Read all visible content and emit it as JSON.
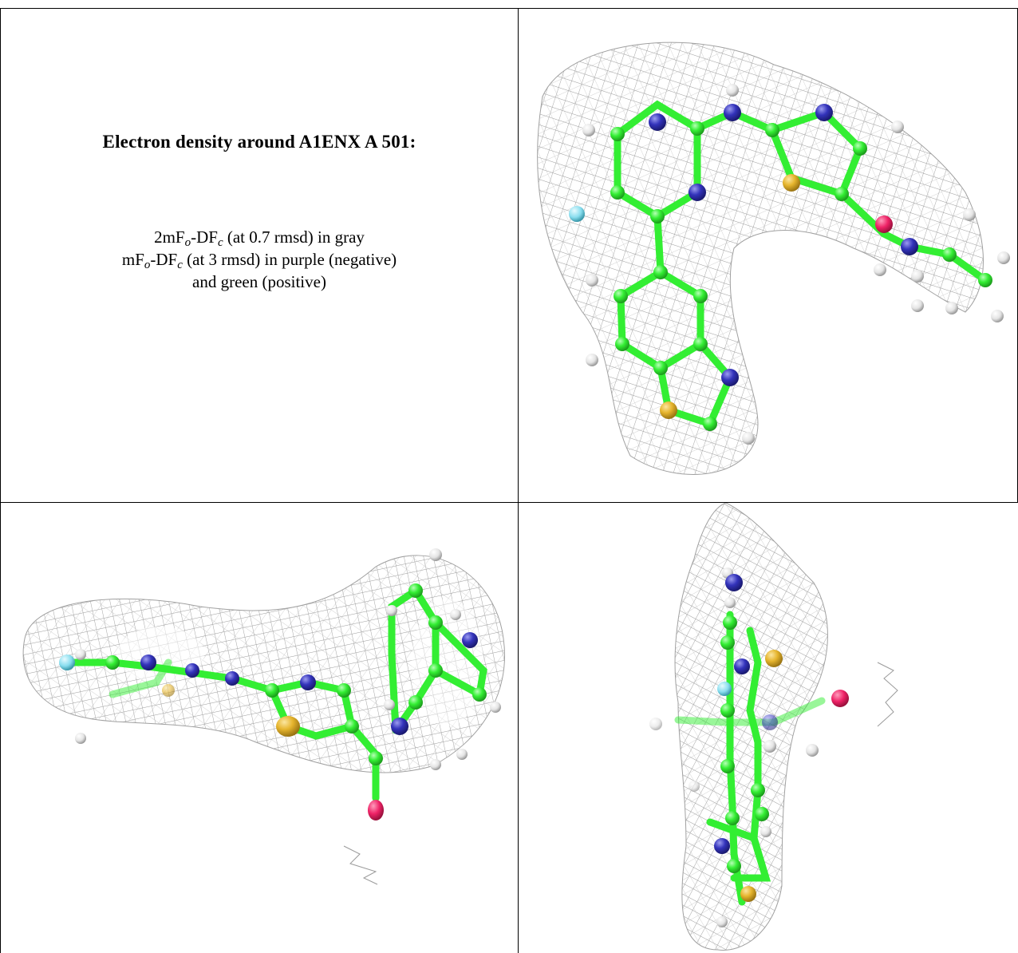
{
  "caption": {
    "title": "Electron density around A1ENX A 501:",
    "line1": {
      "pre": "2mF",
      "sub1": "o",
      "mid": "-DF",
      "sub2": "c",
      "post": " (at 0.7 rmsd) in gray"
    },
    "line2": {
      "pre": "mF",
      "sub1": "o",
      "mid": "-DF",
      "sub2": "c",
      "post": " (at 3 rmsd) in purple (negative)"
    },
    "line3": "and green (positive)"
  },
  "colors": {
    "carbon": "#33ee33",
    "nitrogen": "#3333bb",
    "sulfur": "#e6b52e",
    "fluorine": "#88ddee",
    "oxygen": "#ee2266",
    "hydrogen": "#e8e8e8",
    "mesh": "#9a9a9a"
  },
  "panels": [
    "density-view-top-right",
    "density-view-bottom-left",
    "density-view-bottom-right"
  ]
}
